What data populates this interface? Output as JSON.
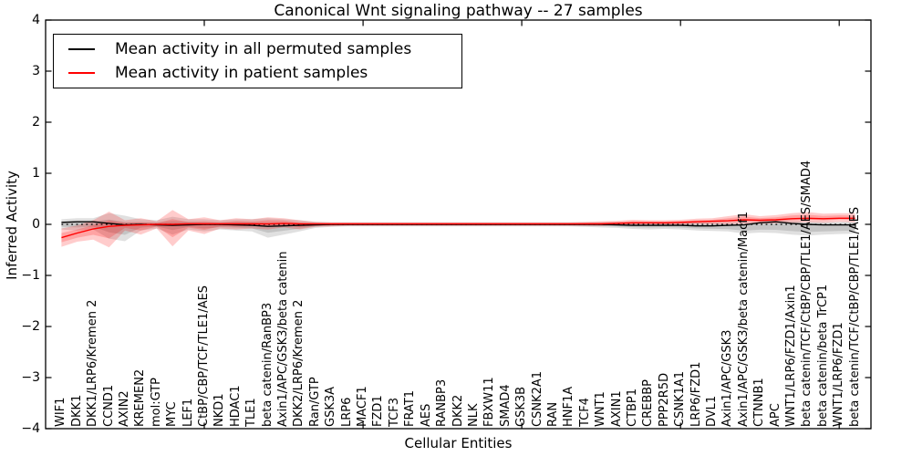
{
  "chart_data": {
    "type": "line",
    "title": "Canonical Wnt signaling pathway -- 27 samples",
    "xlabel": "Cellular Entities",
    "ylabel": "Inferred Activity",
    "ylim": [
      -4,
      4
    ],
    "yticks": [
      4,
      3,
      2,
      1,
      0,
      -1,
      -2,
      -3,
      -4
    ],
    "xlim": [
      0,
      52
    ],
    "xticks": [
      10,
      20,
      30,
      40,
      50
    ],
    "grid": false,
    "legend_position": "upper left",
    "zero_reference_line": "dotted",
    "categories": [
      "WIF1",
      "DKK1",
      "DKK1/LRP6/Kremen 2",
      "CCND1",
      "AXIN2",
      "KREMEN2",
      "mol:GTP",
      "MYC",
      "LEF1",
      "CtBP/CBP/TCF/TLE1/AES",
      "NKD1",
      "HDAC1",
      "TLE1",
      "beta catenin/RanBP3",
      "Axin1/APC/GSK3/beta catenin",
      "DKK2/LRP6/Kremen 2",
      "Ran/GTP",
      "GSK3A",
      "LRP6",
      "MACF1",
      "FZD1",
      "TCF3",
      "FRAT1",
      "AES",
      "RANBP3",
      "DKK2",
      "NLK",
      "FBXW11",
      "SMAD4",
      "GSK3B",
      "CSNK2A1",
      "RAN",
      "HNF1A",
      "TCF4",
      "WNT1",
      "AXIN1",
      "CTBP1",
      "CREBBP",
      "PPP2R5D",
      "CSNK1A1",
      "LRP6/FZD1",
      "DVL1",
      "Axin1/APC/GSK3",
      "Axin1/APC/GSK3/beta catenin/Macf1",
      "CTNNB1",
      "APC",
      "WNT1/LRP6/FZD1/Axin1",
      "beta catenin/TCF/CtBP/CBP/TLE1/AES/SMAD4",
      "beta catenin/beta TrCP1",
      "WNT1/LRP6/FZD1",
      "beta catenin/TCF/CtBP/CBP/TLE1/AES"
    ],
    "series": [
      {
        "name": "Mean activity in all permuted samples",
        "color": "#000000",
        "band_color": "rgba(0,0,0,0.12)",
        "values": [
          0.04,
          0.05,
          0.05,
          0.02,
          -0.01,
          0,
          -0.01,
          -0.02,
          -0.01,
          0,
          0,
          -0.01,
          -0.02,
          -0.04,
          -0.03,
          -0.02,
          -0.01,
          0,
          0,
          0,
          0,
          0,
          0,
          0,
          0,
          0,
          0,
          0,
          0,
          0,
          0,
          0,
          0,
          0,
          0,
          -0.01,
          -0.02,
          -0.02,
          -0.02,
          -0.02,
          -0.03,
          -0.03,
          -0.02,
          -0.01,
          0.03,
          0.05,
          0.02,
          0,
          -0.01,
          -0.01,
          -0.01
        ],
        "band_lower": [
          -0.1,
          -0.12,
          -0.1,
          -0.28,
          -0.33,
          -0.12,
          -0.08,
          -0.2,
          -0.1,
          -0.14,
          -0.1,
          -0.12,
          -0.14,
          -0.26,
          -0.2,
          -0.14,
          -0.07,
          -0.05,
          -0.04,
          -0.04,
          -0.04,
          -0.04,
          -0.04,
          -0.04,
          -0.04,
          -0.04,
          -0.04,
          -0.04,
          -0.04,
          -0.04,
          -0.04,
          -0.04,
          -0.04,
          -0.05,
          -0.06,
          -0.07,
          -0.09,
          -0.1,
          -0.09,
          -0.1,
          -0.12,
          -0.13,
          -0.14,
          -0.18,
          -0.16,
          -0.17,
          -0.2,
          -0.22,
          -0.2,
          -0.19,
          -0.18
        ],
        "band_upper": [
          0.1,
          0.12,
          0.12,
          0.22,
          0.17,
          0.1,
          0.08,
          0.15,
          0.1,
          0.1,
          0.08,
          0.1,
          0.1,
          0.12,
          0.1,
          0.08,
          0.05,
          0.04,
          0.04,
          0.04,
          0.04,
          0.04,
          0.04,
          0.04,
          0.04,
          0.04,
          0.04,
          0.04,
          0.04,
          0.04,
          0.04,
          0.04,
          0.04,
          0.04,
          0.04,
          0.04,
          0.04,
          0.04,
          0.04,
          0.04,
          0.04,
          0.04,
          0.04,
          0.05,
          0.06,
          0.08,
          0.07,
          0.06,
          0.05,
          0.05,
          0.06
        ]
      },
      {
        "name": "Mean activity in patient samples",
        "color": "#ff0000",
        "band_color": "rgba(255,0,0,0.2)",
        "values": [
          -0.26,
          -0.17,
          -0.09,
          -0.04,
          -0.02,
          -0.01,
          0,
          0,
          0.01,
          0.01,
          0.01,
          0.01,
          0.01,
          0.01,
          0.02,
          0.01,
          0.01,
          0.01,
          0.01,
          0.01,
          0.01,
          0.01,
          0.01,
          0.01,
          0.01,
          0.01,
          0.01,
          0.01,
          0.01,
          0.01,
          0.01,
          0.01,
          0.01,
          0.01,
          0.01,
          0.02,
          0.03,
          0.03,
          0.03,
          0.04,
          0.05,
          0.06,
          0.07,
          0.09,
          0.08,
          0.09,
          0.11,
          0.12,
          0.11,
          0.12,
          0.12
        ],
        "band_lower": [
          -0.44,
          -0.34,
          -0.3,
          -0.45,
          -0.12,
          -0.2,
          -0.08,
          -0.43,
          -0.12,
          -0.19,
          -0.08,
          -0.1,
          -0.08,
          -0.1,
          -0.06,
          -0.1,
          -0.05,
          -0.04,
          -0.03,
          -0.03,
          -0.03,
          -0.03,
          -0.03,
          -0.03,
          -0.03,
          -0.03,
          -0.03,
          -0.03,
          -0.03,
          -0.03,
          -0.03,
          -0.03,
          -0.03,
          -0.03,
          -0.03,
          -0.02,
          -0.02,
          -0.01,
          -0.02,
          -0.01,
          0,
          0,
          0,
          0.01,
          0.01,
          0.02,
          0.03,
          0.04,
          0.03,
          0.05,
          0.04
        ],
        "band_upper": [
          -0.08,
          -0.02,
          0.08,
          0.25,
          0.08,
          0.12,
          0.06,
          0.28,
          0.1,
          0.14,
          0.08,
          0.12,
          0.1,
          0.14,
          0.12,
          0.08,
          0.05,
          0.04,
          0.04,
          0.04,
          0.04,
          0.04,
          0.04,
          0.04,
          0.04,
          0.04,
          0.04,
          0.04,
          0.04,
          0.04,
          0.04,
          0.04,
          0.04,
          0.05,
          0.06,
          0.07,
          0.09,
          0.08,
          0.08,
          0.09,
          0.11,
          0.12,
          0.16,
          0.2,
          0.16,
          0.18,
          0.22,
          0.24,
          0.21,
          0.22,
          0.22
        ]
      }
    ]
  },
  "legend": {
    "items": [
      {
        "label": "Mean activity in all permuted samples",
        "color": "#000000"
      },
      {
        "label": "Mean activity in patient samples",
        "color": "#ff0000"
      }
    ]
  }
}
